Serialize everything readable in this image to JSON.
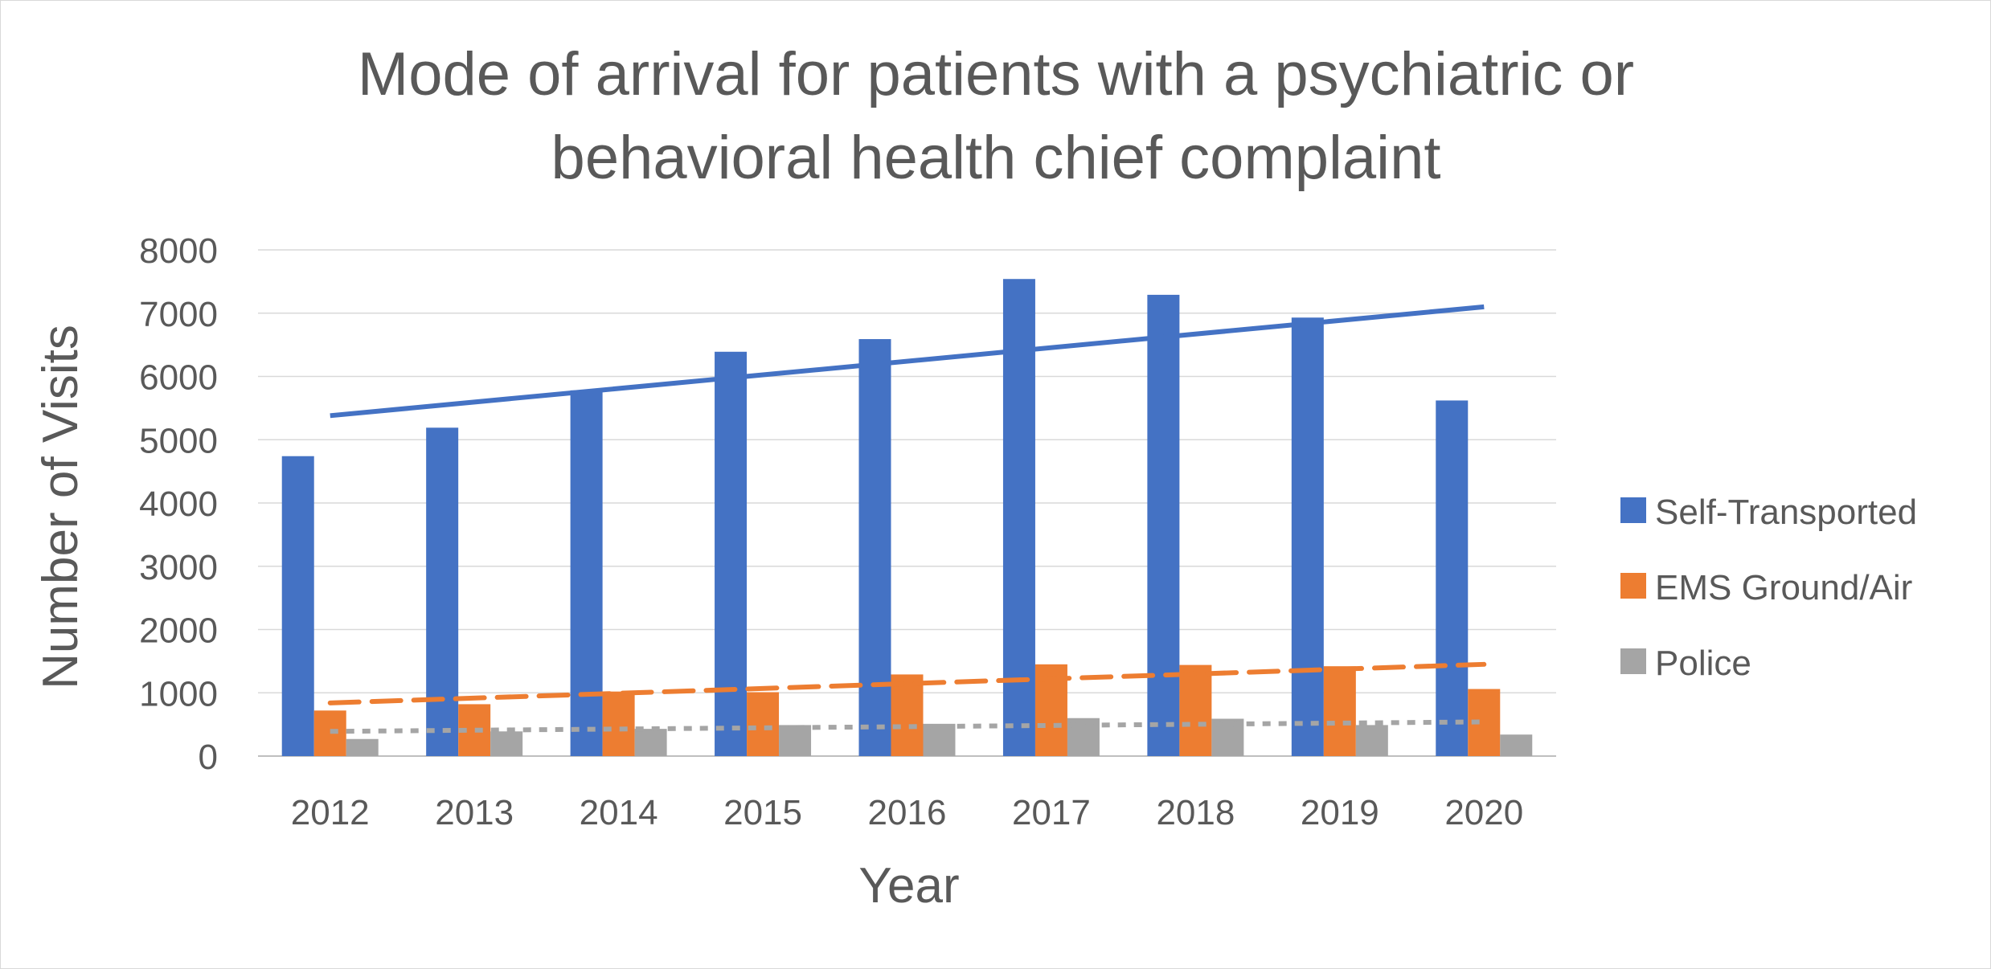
{
  "chart_data": {
    "type": "bar",
    "title_lines": [
      "Mode of arrival for patients with a psychiatric or",
      "behavioral health chief complaint"
    ],
    "xlabel": "Year",
    "ylabel": "Number of Visits",
    "categories": [
      "2012",
      "2013",
      "2014",
      "2015",
      "2016",
      "2017",
      "2018",
      "2019",
      "2020"
    ],
    "ylim": [
      0,
      8000
    ],
    "yticks": [
      0,
      1000,
      2000,
      3000,
      4000,
      5000,
      6000,
      7000,
      8000
    ],
    "grid": true,
    "legend_position": "right",
    "series": [
      {
        "name": "Self-Transported",
        "color": "#4472C4",
        "values": [
          4740,
          5190,
          5780,
          6390,
          6590,
          7540,
          7290,
          6930,
          5620
        ],
        "trendline": {
          "style": "solid",
          "start": 5380,
          "end": 7100
        }
      },
      {
        "name": "EMS Ground/Air",
        "color": "#ED7D31",
        "values": [
          720,
          820,
          1020,
          1010,
          1290,
          1450,
          1440,
          1420,
          1060
        ],
        "trendline": {
          "style": "dashed",
          "start": 840,
          "end": 1450
        }
      },
      {
        "name": "Police",
        "color": "#A5A5A5",
        "values": [
          270,
          390,
          430,
          490,
          510,
          600,
          590,
          490,
          340
        ],
        "trendline": {
          "style": "dotted",
          "start": 390,
          "end": 540
        }
      }
    ]
  }
}
